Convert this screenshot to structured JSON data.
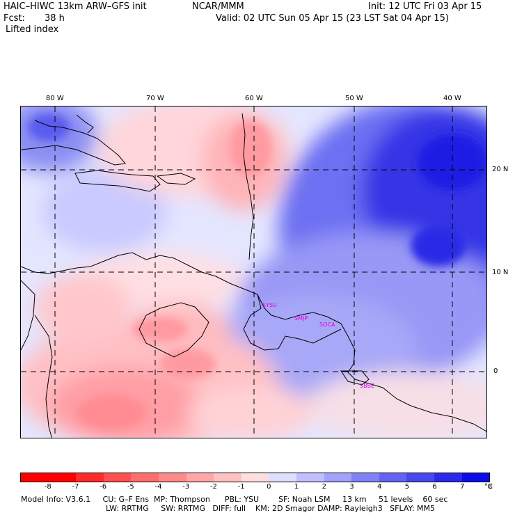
{
  "header": {
    "model": "HAIC–HIWC 13km ARW–GFS init",
    "org": "NCAR/MMM",
    "init": "Init: 12 UTC Fri 03 Apr 15",
    "fcst_label": "Fcst:",
    "fcst_value": "38 h",
    "valid": "Valid: 02 UTC Sun 05 Apr 15 (23 LST Sat 04 Apr 15)",
    "field": "Lifted index"
  },
  "axes": {
    "lon_labels": [
      "80 W",
      "70 W",
      "60 W",
      "50 W",
      "40 W"
    ],
    "lat_labels": [
      "20 N",
      "10 N",
      "0"
    ]
  },
  "sites": [
    "SYSU",
    "SMJP",
    "SOCA",
    "SBBE"
  ],
  "colorbar": {
    "unit": "°C",
    "labels": [
      "-8",
      "-7",
      "-6",
      "-5",
      "-4",
      "-3",
      "-2",
      "-1",
      "0",
      "1",
      "2",
      "3",
      "4",
      "5",
      "6",
      "7",
      "8"
    ],
    "colors": [
      "#ff0000",
      "#ff2a2a",
      "#ff4f4f",
      "#ff6e6e",
      "#ff8a8a",
      "#ffa6a6",
      "#ffc2c2",
      "#ffdede",
      "#ffffff",
      "#dedeff",
      "#c0c0ff",
      "#a2a2fb",
      "#8282f7",
      "#6464f3",
      "#4848ef",
      "#2a2aeb",
      "#0c0ce8"
    ]
  },
  "footer": {
    "line1": "Model Info: V3.6.1     CU: G–F Ens  MP: Thompson      PBL: YSU        SF: Noah LSM     13 km     51 levels    60 sec",
    "line2": "LW: RRTMG     SW: RRTMG   DIFF: full    KM: 2D Smagor DAMP: Rayleigh3   SFLAY: MM5"
  }
}
